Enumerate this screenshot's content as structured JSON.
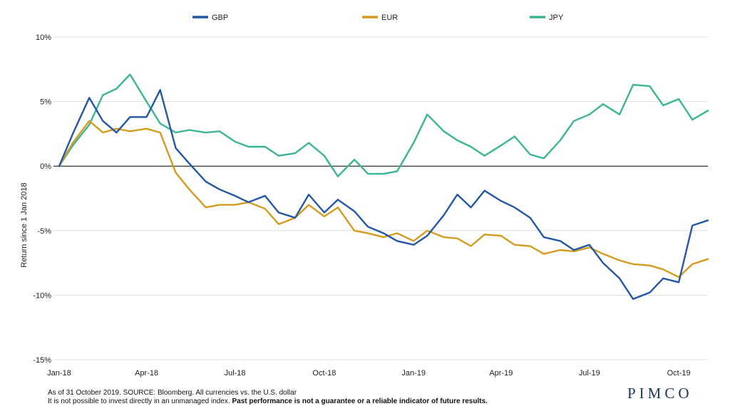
{
  "brand": {
    "logo_text": "PIMCO"
  },
  "footnotes": {
    "line1": "As of 31 October 2019. SOURCE: Bloomberg. All currencies vs. the U.S. dollar",
    "line2_plain": "It is not possible to invest directly in an unmanaged index. ",
    "line2_bold": "Past performance is not a guarantee or a reliable indicator of future results."
  },
  "chart_data": {
    "type": "line",
    "ylabel": "Return since 1 Jan 2018",
    "ylim": [
      -15,
      10
    ],
    "yticks": [
      10,
      5,
      0,
      -5,
      -10,
      -15
    ],
    "ytick_labels": [
      "10%",
      "5%",
      "0%",
      "-5%",
      "-10%",
      "-15%"
    ],
    "xlim": [
      "2018-01-01",
      "2019-10-31"
    ],
    "xticks": [
      "2018-01-01",
      "2018-04-01",
      "2018-07-01",
      "2018-10-01",
      "2019-01-01",
      "2019-04-01",
      "2019-07-01",
      "2019-10-01"
    ],
    "xtick_labels": [
      "Jan-18",
      "Apr-18",
      "Jul-18",
      "Oct-18",
      "Jan-19",
      "Apr-19",
      "Jul-19",
      "Oct-19"
    ],
    "grid": "horizontal",
    "legend": "top",
    "zero_line": true,
    "series": [
      {
        "name": "GBP",
        "color": "#2457a5",
        "x": [
          "2018-01-01",
          "2018-01-15",
          "2018-02-01",
          "2018-02-15",
          "2018-03-01",
          "2018-03-15",
          "2018-04-01",
          "2018-04-15",
          "2018-05-01",
          "2018-05-15",
          "2018-06-01",
          "2018-06-15",
          "2018-07-01",
          "2018-07-15",
          "2018-08-01",
          "2018-08-15",
          "2018-09-01",
          "2018-09-15",
          "2018-10-01",
          "2018-10-15",
          "2018-11-01",
          "2018-11-15",
          "2018-12-01",
          "2018-12-15",
          "2019-01-01",
          "2019-01-15",
          "2019-02-01",
          "2019-02-15",
          "2019-03-01",
          "2019-03-15",
          "2019-04-01",
          "2019-04-15",
          "2019-05-01",
          "2019-05-15",
          "2019-06-01",
          "2019-06-15",
          "2019-07-01",
          "2019-07-15",
          "2019-08-01",
          "2019-08-15",
          "2019-09-01",
          "2019-09-15",
          "2019-10-01",
          "2019-10-15",
          "2019-10-31"
        ],
        "values": [
          0.0,
          2.5,
          5.3,
          3.5,
          2.6,
          3.8,
          3.8,
          5.9,
          1.4,
          0.2,
          -1.2,
          -1.8,
          -2.3,
          -2.8,
          -2.3,
          -3.6,
          -4.0,
          -2.2,
          -3.6,
          -2.6,
          -3.5,
          -4.7,
          -5.2,
          -5.8,
          -6.1,
          -5.4,
          -3.8,
          -2.2,
          -3.2,
          -1.9,
          -2.7,
          -3.2,
          -4.0,
          -5.5,
          -5.8,
          -6.5,
          -6.1,
          -7.5,
          -8.7,
          -10.3,
          -9.8,
          -8.7,
          -9.0,
          -4.6,
          -4.2
        ]
      },
      {
        "name": "EUR",
        "color": "#d39c1f",
        "x": [
          "2018-01-01",
          "2018-01-15",
          "2018-02-01",
          "2018-02-15",
          "2018-03-01",
          "2018-03-15",
          "2018-04-01",
          "2018-04-15",
          "2018-05-01",
          "2018-05-15",
          "2018-06-01",
          "2018-06-15",
          "2018-07-01",
          "2018-07-15",
          "2018-08-01",
          "2018-08-15",
          "2018-09-01",
          "2018-09-15",
          "2018-10-01",
          "2018-10-15",
          "2018-11-01",
          "2018-11-15",
          "2018-12-01",
          "2018-12-15",
          "2019-01-01",
          "2019-01-15",
          "2019-02-01",
          "2019-02-15",
          "2019-03-01",
          "2019-03-15",
          "2019-04-01",
          "2019-04-15",
          "2019-05-01",
          "2019-05-15",
          "2019-06-01",
          "2019-06-15",
          "2019-07-01",
          "2019-07-15",
          "2019-08-01",
          "2019-08-15",
          "2019-09-01",
          "2019-09-15",
          "2019-10-01",
          "2019-10-15",
          "2019-10-31"
        ],
        "values": [
          0.0,
          1.8,
          3.5,
          2.6,
          2.9,
          2.7,
          2.9,
          2.6,
          -0.5,
          -1.8,
          -3.2,
          -3.0,
          -3.0,
          -2.8,
          -3.3,
          -4.5,
          -4.0,
          -3.0,
          -3.9,
          -3.2,
          -5.0,
          -5.2,
          -5.5,
          -5.2,
          -5.8,
          -5.0,
          -5.5,
          -5.6,
          -6.2,
          -5.3,
          -5.4,
          -6.1,
          -6.2,
          -6.8,
          -6.5,
          -6.6,
          -6.3,
          -6.8,
          -7.3,
          -7.6,
          -7.7,
          -8.0,
          -8.6,
          -7.6,
          -7.2
        ]
      },
      {
        "name": "JPY",
        "color": "#3bb596",
        "x": [
          "2018-01-01",
          "2018-01-15",
          "2018-02-01",
          "2018-02-15",
          "2018-03-01",
          "2018-03-15",
          "2018-04-01",
          "2018-04-15",
          "2018-05-01",
          "2018-05-15",
          "2018-06-01",
          "2018-06-15",
          "2018-07-01",
          "2018-07-15",
          "2018-08-01",
          "2018-08-15",
          "2018-09-01",
          "2018-09-15",
          "2018-10-01",
          "2018-10-15",
          "2018-11-01",
          "2018-11-15",
          "2018-12-01",
          "2018-12-15",
          "2019-01-01",
          "2019-01-15",
          "2019-02-01",
          "2019-02-15",
          "2019-03-01",
          "2019-03-15",
          "2019-04-01",
          "2019-04-15",
          "2019-05-01",
          "2019-05-15",
          "2019-06-01",
          "2019-06-15",
          "2019-07-01",
          "2019-07-15",
          "2019-08-01",
          "2019-08-15",
          "2019-09-01",
          "2019-09-15",
          "2019-10-01",
          "2019-10-15",
          "2019-10-31"
        ],
        "values": [
          0.0,
          1.6,
          3.2,
          5.5,
          6.0,
          7.1,
          5.0,
          3.3,
          2.6,
          2.8,
          2.6,
          2.7,
          1.9,
          1.5,
          1.5,
          0.8,
          1.0,
          1.8,
          0.8,
          -0.8,
          0.5,
          -0.6,
          -0.6,
          -0.4,
          1.8,
          4.0,
          2.7,
          2.0,
          1.5,
          0.8,
          1.6,
          2.3,
          0.9,
          0.6,
          2.0,
          3.5,
          4.0,
          4.8,
          4.0,
          6.3,
          6.2,
          4.7,
          5.2,
          3.6,
          4.3
        ]
      }
    ]
  }
}
